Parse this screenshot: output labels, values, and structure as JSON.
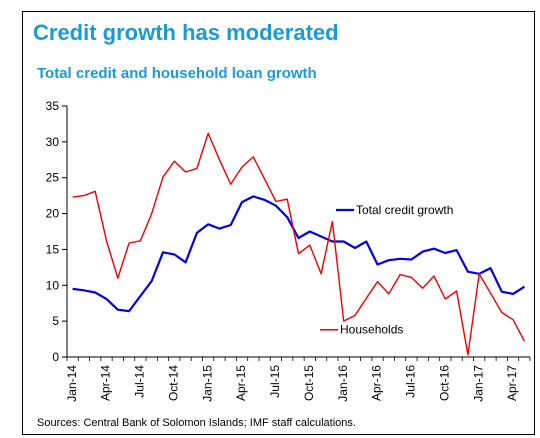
{
  "title": "Credit growth has moderated",
  "subtitle": "Total credit and household loan growth",
  "source": "Sources: Central Bank of Solomon Islands; IMF staff calculations.",
  "colors": {
    "title": "#1a9ad6",
    "total_credit": "#0000ee",
    "households": "#ee0000"
  },
  "chart_data": {
    "type": "line",
    "x": [
      "Jan-14",
      "Feb-14",
      "Mar-14",
      "Apr-14",
      "May-14",
      "Jun-14",
      "Jul-14",
      "Aug-14",
      "Sep-14",
      "Oct-14",
      "Nov-14",
      "Dec-14",
      "Jan-15",
      "Feb-15",
      "Mar-15",
      "Apr-15",
      "May-15",
      "Jun-15",
      "Jul-15",
      "Aug-15",
      "Sep-15",
      "Oct-15",
      "Nov-15",
      "Dec-15",
      "Jan-16",
      "Feb-16",
      "Mar-16",
      "Apr-16",
      "May-16",
      "Jun-16",
      "Jul-16",
      "Aug-16",
      "Sep-16",
      "Oct-16",
      "Nov-16",
      "Dec-16",
      "Jan-17",
      "Feb-17",
      "Mar-17",
      "Apr-17",
      "May-17"
    ],
    "xtick_labels": [
      "Jan-14",
      "Apr-14",
      "Jul-14",
      "Oct-14",
      "Jan-15",
      "Apr-15",
      "Jul-15",
      "Oct-15",
      "Jan-16",
      "Apr-16",
      "Jul-16",
      "Oct-16",
      "Jan-17",
      "Apr-17"
    ],
    "ylim": [
      0,
      35
    ],
    "yticks": [
      0,
      5,
      10,
      15,
      20,
      25,
      30,
      35
    ],
    "grid": false,
    "series": [
      {
        "name": "Total credit growth",
        "color": "#0000ee",
        "values": [
          9.5,
          9.3,
          9.0,
          8.1,
          6.6,
          6.4,
          8.5,
          10.6,
          14.6,
          14.3,
          13.2,
          17.3,
          18.5,
          17.9,
          18.4,
          21.6,
          22.4,
          21.9,
          21.1,
          19.5,
          16.6,
          17.5,
          16.8,
          16.1,
          16.1,
          15.2,
          16.1,
          12.9,
          13.5,
          13.7,
          13.6,
          14.7,
          15.1,
          14.5,
          14.9,
          11.9,
          11.6,
          12.4,
          9.1,
          8.8,
          9.8
        ]
      },
      {
        "name": "Households",
        "color": "#ee0000",
        "values": [
          22.3,
          22.5,
          23.1,
          16.2,
          11.0,
          15.9,
          16.2,
          20.0,
          25.1,
          27.3,
          25.8,
          26.3,
          31.2,
          27.5,
          24.1,
          26.5,
          27.9,
          24.8,
          21.7,
          22.0,
          14.4,
          15.6,
          11.6,
          18.9,
          5.0,
          5.8,
          8.2,
          10.5,
          8.8,
          11.5,
          11.1,
          9.6,
          11.3,
          8.1,
          9.2,
          0.3,
          11.6,
          8.9,
          6.2,
          5.2,
          2.2
        ]
      }
    ],
    "legend": [
      "Total credit growth",
      "Households"
    ]
  }
}
